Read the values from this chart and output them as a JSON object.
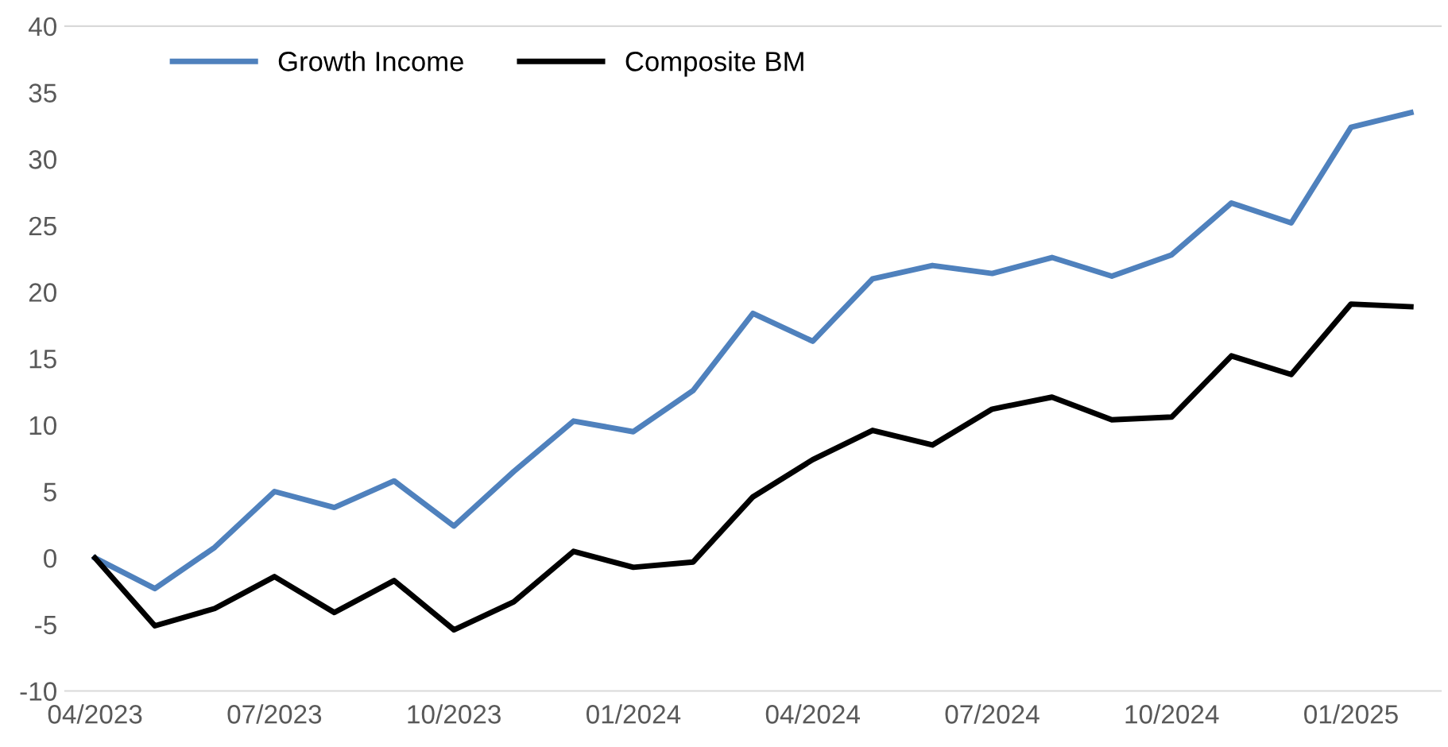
{
  "chart_data": {
    "type": "line",
    "categories": [
      "04/2023",
      null,
      null,
      "07/2023",
      null,
      null,
      "10/2023",
      null,
      null,
      "01/2024",
      null,
      null,
      "04/2024",
      null,
      null,
      "07/2024",
      null,
      null,
      "10/2024",
      null,
      null,
      "01/2025",
      null
    ],
    "series": [
      {
        "name": "Growth Income",
        "color": "#4f81bd",
        "values": [
          0,
          -2.3,
          0.8,
          5.0,
          3.8,
          5.8,
          2.4,
          6.5,
          10.3,
          9.5,
          12.6,
          18.4,
          16.3,
          21.0,
          22.0,
          21.4,
          22.6,
          21.2,
          22.8,
          26.7,
          25.2,
          32.4,
          33.5
        ]
      },
      {
        "name": "Composite BM",
        "color": "#000000",
        "values": [
          0,
          -5.1,
          -3.8,
          -1.4,
          -4.1,
          -1.7,
          -5.4,
          -3.3,
          0.5,
          -0.7,
          -0.3,
          4.6,
          7.4,
          9.6,
          8.5,
          11.2,
          12.1,
          10.4,
          10.6,
          15.2,
          13.8,
          19.1,
          18.9
        ]
      }
    ],
    "ylim": [
      -10,
      40
    ],
    "yticks": [
      -10,
      -5,
      0,
      5,
      10,
      15,
      20,
      25,
      30,
      35,
      40
    ],
    "grid": false,
    "legend": "top left",
    "marker": "none",
    "line_style": "solid"
  }
}
